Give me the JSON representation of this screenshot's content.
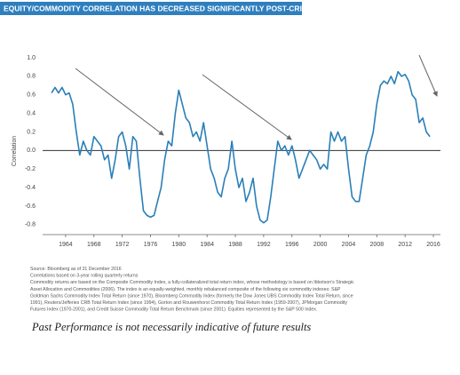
{
  "chart_data": {
    "type": "line",
    "title": "EQUITY/COMMODITY CORRELATION HAS DECREASED SIGNIFICANTLY POST-CRISIS",
    "y_label": "Correlation",
    "xlim": [
      1961.5,
      2017
    ],
    "xticks": [
      1964,
      1968,
      1972,
      1976,
      1980,
      1984,
      1988,
      1992,
      1996,
      2000,
      2004,
      2008,
      2012,
      2016
    ],
    "ylim": [
      -0.85,
      1.0
    ],
    "yticks": [
      {
        "value": 1.0,
        "label": "1.0"
      },
      0.8,
      0.6,
      0.4,
      0.2,
      {
        "value": 0,
        "label": "0.0"
      },
      -0.2,
      -0.4,
      -0.6,
      -0.8
    ],
    "zero_line": true,
    "series": [
      {
        "name": "Equity/Commodity Correlation",
        "color": "#2a7fb8",
        "x": [
          1962,
          1962.5,
          1963,
          1963.5,
          1964,
          1964.5,
          1965,
          1965.5,
          1966,
          1966.5,
          1967,
          1967.5,
          1968,
          1968.5,
          1969,
          1969.5,
          1970,
          1970.5,
          1971,
          1971.5,
          1972,
          1972.5,
          1973,
          1973.5,
          1974,
          1974.5,
          1975,
          1975.5,
          1976,
          1976.5,
          1977,
          1977.5,
          1978,
          1978.5,
          1979,
          1979.5,
          1980,
          1980.5,
          1981,
          1981.5,
          1982,
          1982.5,
          1983,
          1983.5,
          1984,
          1984.5,
          1985,
          1985.5,
          1986,
          1986.5,
          1987,
          1987.5,
          1988,
          1988.5,
          1989,
          1989.5,
          1990,
          1990.5,
          1991,
          1991.5,
          1992,
          1992.5,
          1993,
          1993.5,
          1994,
          1994.5,
          1995,
          1995.5,
          1996,
          1996.5,
          1997,
          1997.5,
          1998,
          1998.5,
          1999,
          1999.5,
          2000,
          2000.5,
          2001,
          2001.5,
          2002,
          2002.5,
          2003,
          2003.5,
          2004,
          2004.5,
          2005,
          2005.5,
          2006,
          2006.5,
          2007,
          2007.5,
          2008,
          2008.5,
          2009,
          2009.5,
          2010,
          2010.5,
          2011,
          2011.5,
          2012,
          2012.5,
          2013,
          2013.5,
          2014,
          2014.5,
          2015,
          2015.5
        ],
        "values": [
          0.62,
          0.68,
          0.62,
          0.68,
          0.6,
          0.62,
          0.5,
          0.2,
          -0.05,
          0.1,
          0.0,
          -0.05,
          0.15,
          0.1,
          0.05,
          -0.1,
          -0.05,
          -0.3,
          -0.1,
          0.15,
          0.2,
          0.05,
          -0.2,
          0.15,
          0.1,
          -0.3,
          -0.65,
          -0.7,
          -0.72,
          -0.7,
          -0.55,
          -0.4,
          -0.1,
          0.1,
          0.05,
          0.4,
          0.65,
          0.5,
          0.35,
          0.3,
          0.15,
          0.2,
          0.1,
          0.3,
          0.05,
          -0.2,
          -0.3,
          -0.45,
          -0.5,
          -0.3,
          -0.2,
          0.1,
          -0.2,
          -0.4,
          -0.3,
          -0.55,
          -0.45,
          -0.3,
          -0.6,
          -0.75,
          -0.78,
          -0.75,
          -0.5,
          -0.2,
          0.1,
          0.0,
          0.05,
          -0.05,
          0.05,
          -0.1,
          -0.3,
          -0.2,
          -0.1,
          0.0,
          -0.05,
          -0.1,
          -0.2,
          -0.15,
          -0.2,
          0.2,
          0.1,
          0.2,
          0.1,
          0.15,
          -0.2,
          -0.5,
          -0.55,
          -0.55,
          -0.3,
          -0.05,
          0.05,
          0.2,
          0.5,
          0.7,
          0.75,
          0.72,
          0.8,
          0.72,
          0.85,
          0.8,
          0.82,
          0.75,
          0.6,
          0.55,
          0.3,
          0.35,
          0.2,
          0.15
        ]
      }
    ],
    "notes": [
      "Source: Bloomberg as of 31 December 2016",
      "Correlations based on 3-year rolling quarterly returns",
      "Commodity returns are based on the Composite Commodity Index, a fully-collateralized total return index, whose methodology is based on Ibbotson's Strategic",
      "Asset Allocation and Commodities (2006). The index is an equally-weighted, monthly rebalanced composite of the following six commodity indexes: S&P",
      "Goldman Sachs Commodity Index Total Return (since 1970), Bloomberg Commodity Index (formerly the Dow Jones UBS Commodity Index Total Return, since",
      "1991), Reuters/Jefferies CRB Total Return Index (since 1994), Gorton and Rouwenhorst Commodity Total Return Index (1959-2007), JPMorgan Commodity",
      "Futures Index (1970-2001), and Credit Suisse Commodity Total Return Benchmark (since 2001). Equities represented by the S&P 500 Index."
    ],
    "disclaimer": "Past Performance is not necessarily indicative of future results"
  }
}
